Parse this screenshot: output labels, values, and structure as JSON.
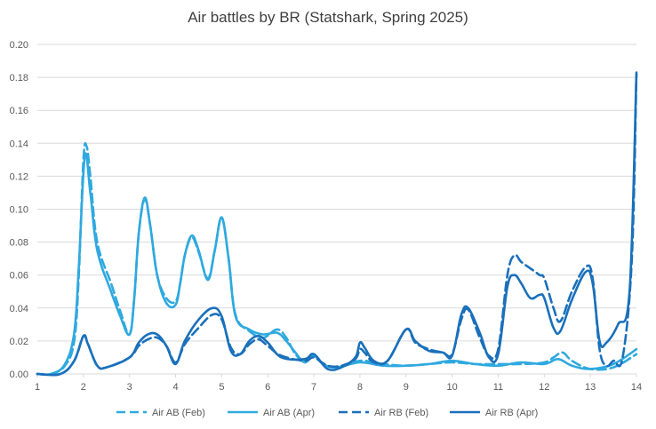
{
  "chart_data": {
    "type": "line",
    "title": "Air battles by BR (Statshark, Spring 2025)",
    "xlabel": "",
    "ylabel": "",
    "xlim": [
      1,
      14
    ],
    "ylim": [
      0,
      0.2
    ],
    "x_ticks": [
      "1",
      "2",
      "3",
      "4",
      "5",
      "6",
      "7",
      "8",
      "9",
      "10",
      "11",
      "12",
      "13",
      "14"
    ],
    "y_ticks": [
      "0.00",
      "0.02",
      "0.04",
      "0.06",
      "0.08",
      "0.10",
      "0.12",
      "0.14",
      "0.16",
      "0.18",
      "0.20"
    ],
    "grid": "horizontal",
    "legend_position": "bottom",
    "colors": {
      "air_ab": "#2fa9df",
      "air_rb": "#1a70bb",
      "axis": "#d9d9d9",
      "grid": "#d9d9d9"
    },
    "series": [
      {
        "name": "Air AB (Feb)",
        "style": "dashed",
        "color": "#2fa9df",
        "points": [
          [
            1.0,
            0.0
          ],
          [
            1.3,
            0.0
          ],
          [
            1.6,
            0.005
          ],
          [
            1.8,
            0.02
          ],
          [
            1.9,
            0.06
          ],
          [
            2.0,
            0.13
          ],
          [
            2.07,
            0.138
          ],
          [
            2.15,
            0.12
          ],
          [
            2.3,
            0.08
          ],
          [
            2.6,
            0.055
          ],
          [
            2.8,
            0.038
          ],
          [
            3.0,
            0.024
          ],
          [
            3.1,
            0.045
          ],
          [
            3.2,
            0.085
          ],
          [
            3.33,
            0.106
          ],
          [
            3.45,
            0.09
          ],
          [
            3.6,
            0.06
          ],
          [
            3.8,
            0.046
          ],
          [
            4.0,
            0.044
          ],
          [
            4.1,
            0.055
          ],
          [
            4.2,
            0.072
          ],
          [
            4.35,
            0.083
          ],
          [
            4.5,
            0.074
          ],
          [
            4.7,
            0.058
          ],
          [
            4.85,
            0.075
          ],
          [
            5.0,
            0.095
          ],
          [
            5.15,
            0.07
          ],
          [
            5.3,
            0.036
          ],
          [
            5.6,
            0.026
          ],
          [
            5.9,
            0.022
          ],
          [
            6.2,
            0.027
          ],
          [
            6.4,
            0.022
          ],
          [
            6.6,
            0.012
          ],
          [
            6.8,
            0.008
          ],
          [
            7.0,
            0.012
          ],
          [
            7.2,
            0.006
          ],
          [
            7.5,
            0.004
          ],
          [
            8.0,
            0.008
          ],
          [
            8.5,
            0.006
          ],
          [
            9.0,
            0.005
          ],
          [
            9.5,
            0.006
          ],
          [
            10.0,
            0.007
          ],
          [
            10.5,
            0.006
          ],
          [
            11.0,
            0.006
          ],
          [
            11.5,
            0.006
          ],
          [
            12.0,
            0.007
          ],
          [
            12.2,
            0.01
          ],
          [
            12.4,
            0.013
          ],
          [
            12.6,
            0.008
          ],
          [
            13.0,
            0.003
          ],
          [
            13.5,
            0.004
          ],
          [
            14.0,
            0.012
          ]
        ]
      },
      {
        "name": "Air AB (Apr)",
        "style": "solid",
        "color": "#2fa9df",
        "points": [
          [
            1.0,
            0.0
          ],
          [
            1.3,
            0.0
          ],
          [
            1.6,
            0.006
          ],
          [
            1.8,
            0.025
          ],
          [
            1.9,
            0.065
          ],
          [
            2.03,
            0.132
          ],
          [
            2.15,
            0.11
          ],
          [
            2.3,
            0.075
          ],
          [
            2.6,
            0.05
          ],
          [
            2.8,
            0.035
          ],
          [
            3.0,
            0.024
          ],
          [
            3.1,
            0.045
          ],
          [
            3.2,
            0.085
          ],
          [
            3.33,
            0.107
          ],
          [
            3.45,
            0.09
          ],
          [
            3.6,
            0.06
          ],
          [
            3.8,
            0.043
          ],
          [
            4.0,
            0.042
          ],
          [
            4.1,
            0.055
          ],
          [
            4.2,
            0.072
          ],
          [
            4.35,
            0.084
          ],
          [
            4.5,
            0.075
          ],
          [
            4.7,
            0.057
          ],
          [
            4.85,
            0.075
          ],
          [
            5.0,
            0.095
          ],
          [
            5.15,
            0.07
          ],
          [
            5.3,
            0.035
          ],
          [
            5.6,
            0.027
          ],
          [
            5.9,
            0.024
          ],
          [
            6.2,
            0.025
          ],
          [
            6.4,
            0.02
          ],
          [
            6.6,
            0.013
          ],
          [
            6.8,
            0.007
          ],
          [
            7.0,
            0.011
          ],
          [
            7.2,
            0.006
          ],
          [
            7.5,
            0.004
          ],
          [
            8.0,
            0.007
          ],
          [
            8.5,
            0.005
          ],
          [
            9.0,
            0.005
          ],
          [
            9.5,
            0.006
          ],
          [
            10.0,
            0.008
          ],
          [
            10.5,
            0.006
          ],
          [
            11.0,
            0.005
          ],
          [
            11.5,
            0.007
          ],
          [
            12.0,
            0.006
          ],
          [
            12.3,
            0.009
          ],
          [
            12.6,
            0.005
          ],
          [
            13.0,
            0.003
          ],
          [
            13.5,
            0.006
          ],
          [
            14.0,
            0.015
          ]
        ]
      },
      {
        "name": "Air RB (Feb)",
        "style": "dashed",
        "color": "#1a70bb",
        "points": [
          [
            1.0,
            0.0
          ],
          [
            1.5,
            0.0
          ],
          [
            1.8,
            0.008
          ],
          [
            2.0,
            0.023
          ],
          [
            2.1,
            0.018
          ],
          [
            2.3,
            0.005
          ],
          [
            2.5,
            0.004
          ],
          [
            3.0,
            0.01
          ],
          [
            3.2,
            0.017
          ],
          [
            3.4,
            0.021
          ],
          [
            3.6,
            0.022
          ],
          [
            3.8,
            0.017
          ],
          [
            4.0,
            0.007
          ],
          [
            4.2,
            0.018
          ],
          [
            4.5,
            0.028
          ],
          [
            4.8,
            0.036
          ],
          [
            5.0,
            0.033
          ],
          [
            5.2,
            0.016
          ],
          [
            5.4,
            0.012
          ],
          [
            5.6,
            0.018
          ],
          [
            5.8,
            0.021
          ],
          [
            6.0,
            0.017
          ],
          [
            6.3,
            0.011
          ],
          [
            6.8,
            0.008
          ],
          [
            7.0,
            0.01
          ],
          [
            7.3,
            0.005
          ],
          [
            7.6,
            0.005
          ],
          [
            7.9,
            0.009
          ],
          [
            8.0,
            0.015
          ],
          [
            8.1,
            0.013
          ],
          [
            8.3,
            0.007
          ],
          [
            8.6,
            0.008
          ],
          [
            9.0,
            0.027
          ],
          [
            9.2,
            0.019
          ],
          [
            9.5,
            0.015
          ],
          [
            9.8,
            0.013
          ],
          [
            10.0,
            0.012
          ],
          [
            10.2,
            0.033
          ],
          [
            10.35,
            0.039
          ],
          [
            10.6,
            0.022
          ],
          [
            10.8,
            0.011
          ],
          [
            11.0,
            0.015
          ],
          [
            11.2,
            0.06
          ],
          [
            11.35,
            0.072
          ],
          [
            11.5,
            0.068
          ],
          [
            11.7,
            0.064
          ],
          [
            11.9,
            0.06
          ],
          [
            12.0,
            0.058
          ],
          [
            12.2,
            0.04
          ],
          [
            12.35,
            0.032
          ],
          [
            12.6,
            0.05
          ],
          [
            12.9,
            0.065
          ],
          [
            13.05,
            0.058
          ],
          [
            13.2,
            0.015
          ],
          [
            13.35,
            0.005
          ],
          [
            13.5,
            0.008
          ],
          [
            13.7,
            0.01
          ],
          [
            13.9,
            0.07
          ],
          [
            14.0,
            0.182
          ]
        ]
      },
      {
        "name": "Air RB (Apr)",
        "style": "solid",
        "color": "#1a70bb",
        "points": [
          [
            1.0,
            0.0
          ],
          [
            1.5,
            0.0
          ],
          [
            1.8,
            0.008
          ],
          [
            2.0,
            0.023
          ],
          [
            2.1,
            0.018
          ],
          [
            2.3,
            0.005
          ],
          [
            2.5,
            0.004
          ],
          [
            3.0,
            0.01
          ],
          [
            3.2,
            0.019
          ],
          [
            3.4,
            0.024
          ],
          [
            3.6,
            0.024
          ],
          [
            3.8,
            0.017
          ],
          [
            4.0,
            0.006
          ],
          [
            4.2,
            0.02
          ],
          [
            4.5,
            0.033
          ],
          [
            4.8,
            0.04
          ],
          [
            5.0,
            0.035
          ],
          [
            5.2,
            0.014
          ],
          [
            5.4,
            0.012
          ],
          [
            5.6,
            0.02
          ],
          [
            5.8,
            0.023
          ],
          [
            6.0,
            0.019
          ],
          [
            6.3,
            0.01
          ],
          [
            6.8,
            0.009
          ],
          [
            7.0,
            0.012
          ],
          [
            7.3,
            0.003
          ],
          [
            7.6,
            0.004
          ],
          [
            7.9,
            0.01
          ],
          [
            8.0,
            0.019
          ],
          [
            8.1,
            0.016
          ],
          [
            8.3,
            0.008
          ],
          [
            8.6,
            0.008
          ],
          [
            9.0,
            0.027
          ],
          [
            9.2,
            0.02
          ],
          [
            9.5,
            0.014
          ],
          [
            9.8,
            0.013
          ],
          [
            10.0,
            0.011
          ],
          [
            10.2,
            0.036
          ],
          [
            10.35,
            0.04
          ],
          [
            10.6,
            0.025
          ],
          [
            10.8,
            0.01
          ],
          [
            11.0,
            0.012
          ],
          [
            11.2,
            0.053
          ],
          [
            11.35,
            0.06
          ],
          [
            11.5,
            0.055
          ],
          [
            11.7,
            0.046
          ],
          [
            11.9,
            0.048
          ],
          [
            12.0,
            0.046
          ],
          [
            12.2,
            0.028
          ],
          [
            12.35,
            0.026
          ],
          [
            12.6,
            0.045
          ],
          [
            12.9,
            0.062
          ],
          [
            13.05,
            0.055
          ],
          [
            13.2,
            0.02
          ],
          [
            13.35,
            0.019
          ],
          [
            13.6,
            0.03
          ],
          [
            13.85,
            0.05
          ],
          [
            14.0,
            0.183
          ]
        ]
      }
    ]
  }
}
